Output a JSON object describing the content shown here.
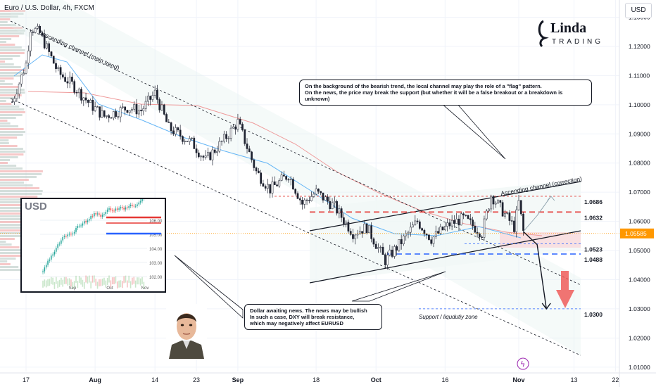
{
  "header": {
    "title": "Euro / U.S. Dollar, 4h, FXCM"
  },
  "currency_button": "USD",
  "logo": {
    "line1": "Linda",
    "line2": "TRADING"
  },
  "annotations": {
    "top_callout": "On the background of the bearish trend, the local channel may play the role of a \"flag\" pattern.\nOn the news, the price may break the support (but whether it will be a false breakout or a breakdown is unknown)",
    "bottom_callout": "Dollar awaiting news. The news may be bullish\nIn such a case, DXY will break resistance,\nwhich may negatively affect EURUSD",
    "descending_channel": "Descending channel (main trend)",
    "ascending_channel": "Ascending channel (correction)",
    "support_zone": "Support / liqudutiy zone"
  },
  "inset": {
    "title": "USD",
    "y_ticks": [
      "106.00",
      "105.00",
      "104.00",
      "103.00",
      "102.00"
    ],
    "x_ticks": [
      "Sep",
      "Oct",
      "Nov"
    ],
    "resistance_color": "#e53935",
    "support_color": "#2962ff"
  },
  "colors": {
    "up": "#26a69a",
    "down": "#ef5350",
    "candles": "#1e2230",
    "ma_blue": "#64b5f6",
    "ma_red": "#ef9a9a",
    "level_red": "#e53935",
    "level_blue": "#2962ff",
    "current": "#ff9800"
  },
  "chart_data": {
    "type": "candlestick",
    "title": "Euro / U.S. Dollar, 4h, FXCM",
    "y_unit": "USD",
    "ylim": [
      1.0085,
      1.1335
    ],
    "y_ticks": [
      1.13,
      1.12,
      1.11,
      1.1,
      1.09,
      1.08,
      1.07,
      1.06,
      1.05,
      1.04,
      1.03,
      1.02,
      1.01
    ],
    "y_tick_labels": [
      "1.13000",
      "1.12000",
      "1.11000",
      "1.10000",
      "1.09000",
      "1.08000",
      "1.07000",
      "1.06000",
      "1.05000",
      "1.04000",
      "1.03000",
      "1.02000",
      "1.01000"
    ],
    "x_ticks": [
      "17",
      "Aug",
      "14",
      "23",
      "Sep",
      "18",
      "Oct",
      "16",
      "Nov",
      "13",
      "22"
    ],
    "current_price": 1.05585,
    "current_price_label": "1.05585",
    "levels": [
      {
        "label": "1.0686",
        "value": 1.0686
      },
      {
        "label": "1.0632",
        "value": 1.0632
      },
      {
        "label": "1.0523",
        "value": 1.0523
      },
      {
        "label": "1.0488",
        "value": 1.0488
      },
      {
        "label": "1.0300",
        "value": 1.03
      }
    ],
    "price_path": [
      [
        "Jul 14",
        1.101
      ],
      [
        "Jul 17",
        1.114
      ],
      [
        "Jul 18",
        1.1265
      ],
      [
        "Jul 20",
        1.1245
      ],
      [
        "Jul 24",
        1.111
      ],
      [
        "Jul 27",
        1.107
      ],
      [
        "Jul 31",
        1.1
      ],
      [
        "Aug 3",
        1.096
      ],
      [
        "Aug 8",
        1.099
      ],
      [
        "Aug 11",
        1.098
      ],
      [
        "Aug 14",
        1.104
      ],
      [
        "Aug 17",
        1.092
      ],
      [
        "Aug 22",
        1.087
      ],
      [
        "Aug 25",
        1.081
      ],
      [
        "Aug 29",
        1.088
      ],
      [
        "Sep 1",
        1.094
      ],
      [
        "Sep 5",
        1.077
      ],
      [
        "Sep 8",
        1.071
      ],
      [
        "Sep 12",
        1.076
      ],
      [
        "Sep 15",
        1.066
      ],
      [
        "Sep 18",
        1.07
      ],
      [
        "Sep 22",
        1.065
      ],
      [
        "Sep 26",
        1.056
      ],
      [
        "Sep 29",
        1.058
      ],
      [
        "Oct 3",
        1.0465
      ],
      [
        "Oct 6",
        1.052
      ],
      [
        "Oct 10",
        1.06
      ],
      [
        "Oct 13",
        1.054
      ],
      [
        "Oct 17",
        1.059
      ],
      [
        "Oct 20",
        1.061
      ],
      [
        "Oct 24",
        1.056
      ],
      [
        "Oct 26",
        1.069
      ],
      [
        "Oct 31",
        1.058
      ],
      [
        "Nov 1",
        1.0665
      ],
      [
        "Nov 2",
        1.0565
      ]
    ],
    "projections": {
      "bearish": [
        [
          "Nov 2",
          1.0565
        ],
        [
          "Nov 5",
          1.052
        ],
        [
          "Nov 7",
          1.03
        ]
      ],
      "bullish": [
        [
          "Nov 2",
          1.0565
        ],
        [
          "Nov 5",
          1.062
        ],
        [
          "Nov 8",
          1.0686
        ]
      ]
    }
  }
}
